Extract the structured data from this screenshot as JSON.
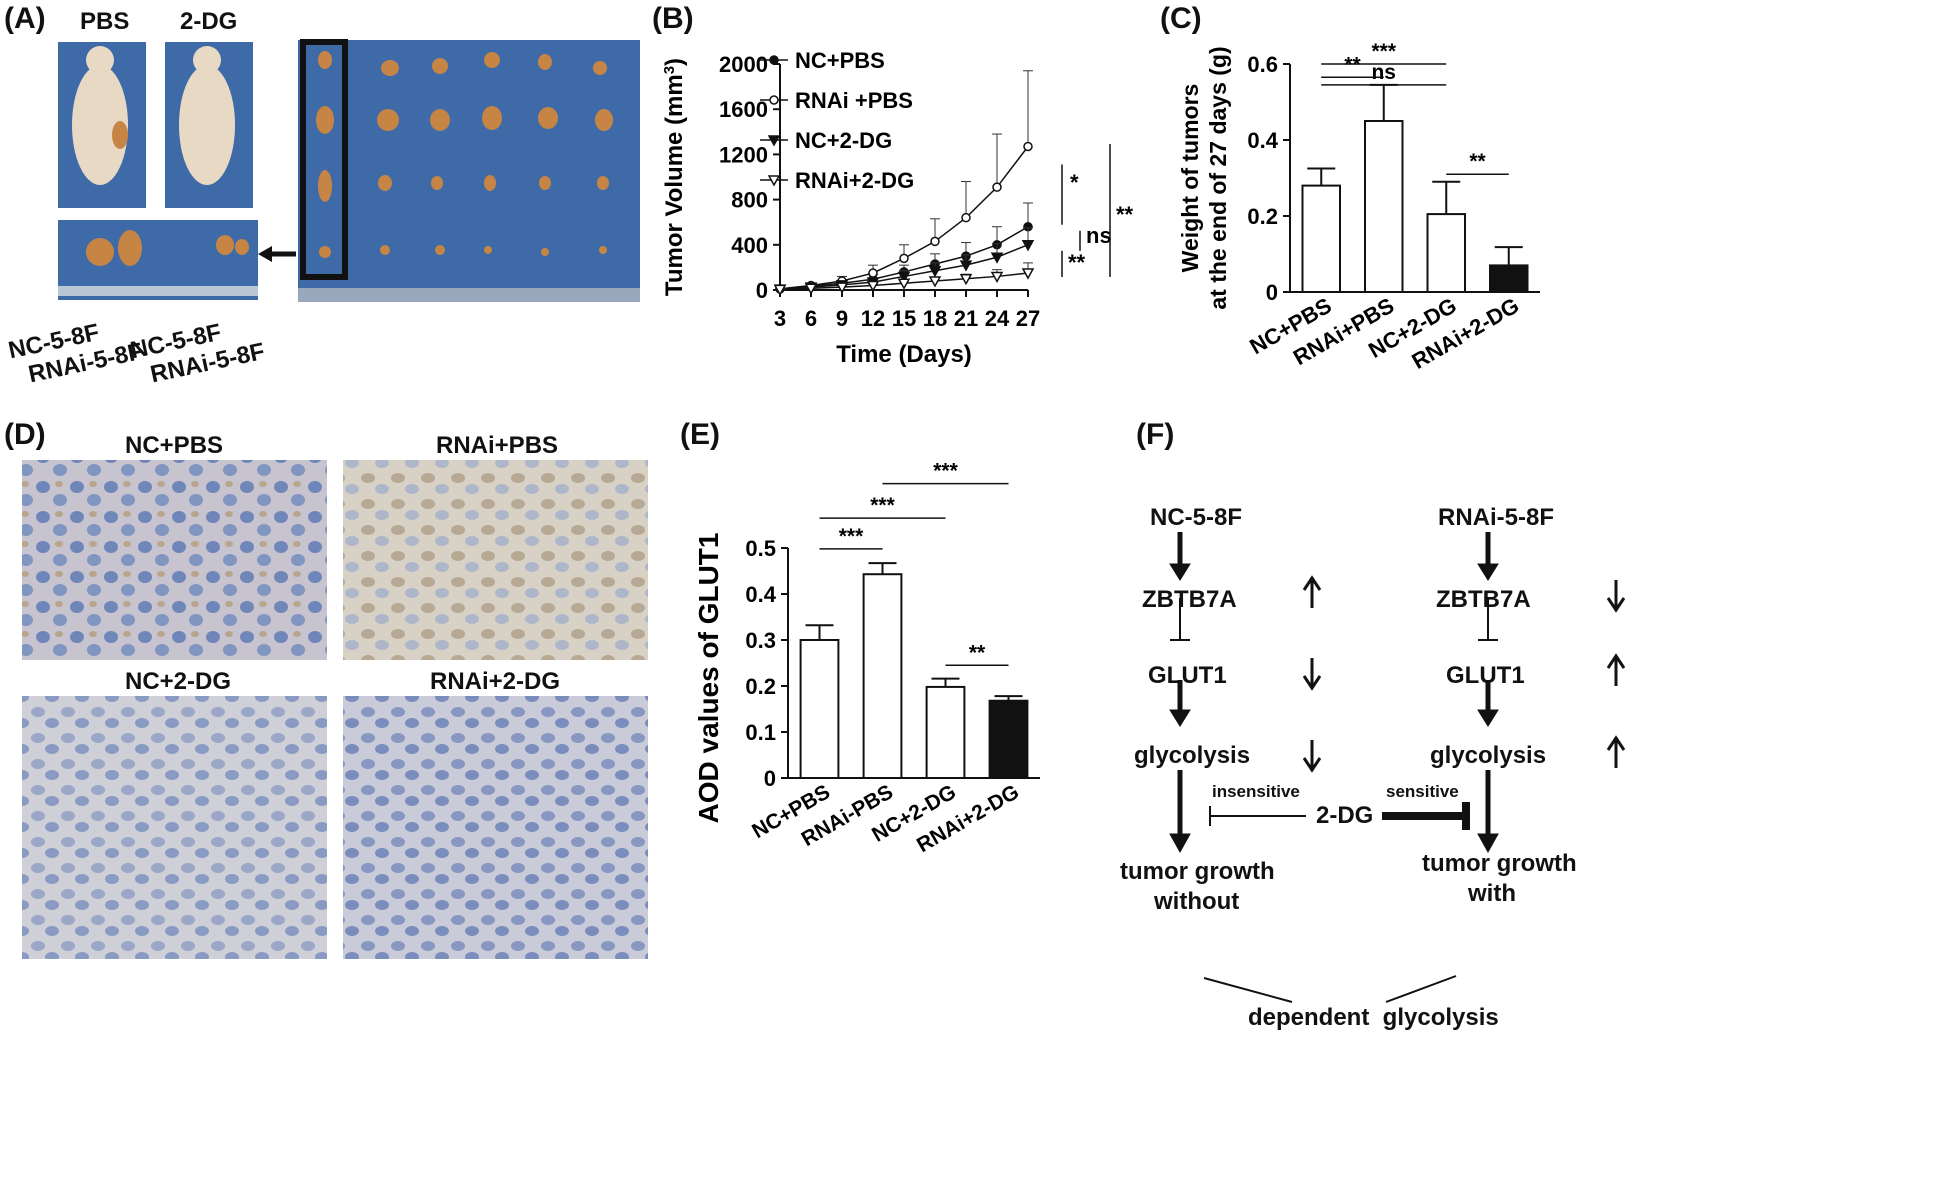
{
  "panels": {
    "A": {
      "label": "(A)",
      "mouse_labels": [
        "PBS",
        "2-DG"
      ],
      "tumor_labels": [
        "NC-5-8F",
        "RNAi-5-8F",
        "NC-5-8F",
        "RNAi-5-8F"
      ],
      "colors": {
        "board": "#3f6aa8",
        "skin": "#e8d9c4",
        "tumor": "#c78545",
        "frame": "#111111"
      }
    },
    "B": {
      "label": "(B)"
    },
    "C": {
      "label": "(C)"
    },
    "D": {
      "label": "(D)",
      "image_titles": [
        "NC+PBS",
        "RNAi+PBS",
        "NC+2-DG",
        "RNAi+2-DG"
      ],
      "colors": {
        "tissue_light": "#c9c6d0",
        "tissue_blue": "#7d8fb6",
        "brown": "#b88250"
      }
    },
    "E": {
      "label": "(E)"
    },
    "F": {
      "label": "(F)",
      "left": {
        "cell": "NC-5-8F",
        "gene1": "ZBTB7A",
        "gene2": "GLUT1",
        "process": "glycolysis",
        "outcome_l1": "tumor growth",
        "outcome_l2": "without",
        "drug_effect": "insensitive"
      },
      "right": {
        "cell": "RNAi-5-8F",
        "gene1": "ZBTB7A",
        "gene2": "GLUT1",
        "process": "glycolysis",
        "outcome_l1": "tumor growth",
        "outcome_l2": "with",
        "drug_effect": "sensitive"
      },
      "drug": "2-DG",
      "bottom": "dependent  glycolysis",
      "arrows": {
        "left_gene1": "up",
        "left_gene2": "down",
        "left_process": "down",
        "right_gene1": "down",
        "right_gene2": "up",
        "right_process": "up"
      }
    }
  },
  "chart_data": [
    {
      "id": "B",
      "type": "line",
      "xlabel": "Time (Days)",
      "ylabel": "Tumor Volume (mm",
      "ylabel_sup": "3",
      "ylabel_close": ")",
      "x": [
        3,
        6,
        9,
        12,
        15,
        18,
        21,
        24,
        27
      ],
      "xlim": [
        3,
        27
      ],
      "ylim": [
        0,
        2000
      ],
      "yticks": [
        0,
        400,
        800,
        1200,
        1600,
        2000
      ],
      "legend_position": "top-left",
      "series": [
        {
          "name": "NC+PBS",
          "marker": "filled-circle",
          "values": [
            10,
            35,
            60,
            95,
            160,
            230,
            300,
            400,
            560
          ],
          "errors": [
            5,
            15,
            25,
            40,
            60,
            90,
            120,
            160,
            210
          ]
        },
        {
          "name": "RNAi +PBS",
          "marker": "open-circle",
          "values": [
            10,
            40,
            80,
            150,
            280,
            430,
            640,
            910,
            1270
          ],
          "errors": [
            5,
            20,
            40,
            70,
            120,
            200,
            320,
            470,
            670
          ]
        },
        {
          "name": "NC+2-DG",
          "marker": "filled-triangle",
          "values": [
            8,
            25,
            45,
            70,
            120,
            170,
            220,
            290,
            400
          ],
          "errors": [
            4,
            12,
            20,
            30,
            50,
            70,
            90,
            120,
            150
          ]
        },
        {
          "name": "RNAi+2-DG",
          "marker": "open-triangle",
          "values": [
            5,
            15,
            25,
            40,
            60,
            80,
            100,
            120,
            150
          ],
          "errors": [
            3,
            8,
            12,
            15,
            20,
            30,
            40,
            60,
            90
          ]
        }
      ],
      "significance": [
        {
          "label": "*",
          "between": [
            "RNAi +PBS",
            "NC+PBS"
          ]
        },
        {
          "label": "ns",
          "between": [
            "NC+PBS",
            "NC+2-DG"
          ]
        },
        {
          "label": "**",
          "between": [
            "NC+2-DG",
            "RNAi+2-DG"
          ]
        },
        {
          "label": "**",
          "between": [
            "RNAi +PBS",
            "RNAi+2-DG"
          ]
        }
      ]
    },
    {
      "id": "C",
      "type": "bar",
      "categories": [
        "NC+PBS",
        "RNAi+PBS",
        "NC+2-DG",
        "RNAi+2-DG"
      ],
      "values": [
        0.28,
        0.45,
        0.205,
        0.07
      ],
      "errors": [
        0.045,
        0.095,
        0.085,
        0.048
      ],
      "fills": [
        "#ffffff",
        "#ffffff",
        "#ffffff",
        "#111111"
      ],
      "ylabel_lines": [
        "Weight of tumors",
        "at the end of 27 days (g)"
      ],
      "ylim": [
        0,
        0.6
      ],
      "yticks": [
        0,
        0.2,
        0.4,
        0.6
      ],
      "brackets": [
        {
          "from": 0,
          "to": 2,
          "label": "***",
          "y": 0.6
        },
        {
          "from": 0,
          "to": 2,
          "label": "ns",
          "y": 0.545
        },
        {
          "from": 0,
          "to": 1,
          "label": "**",
          "y": 0.565
        },
        {
          "from": 2,
          "to": 3,
          "label": "**",
          "y": 0.31
        }
      ]
    },
    {
      "id": "E",
      "type": "bar",
      "categories": [
        "NC+PBS",
        "RNAi-PBS",
        "NC+2-DG",
        "RNAi+2-DG"
      ],
      "values": [
        0.3,
        0.443,
        0.198,
        0.168
      ],
      "errors": [
        0.032,
        0.024,
        0.018,
        0.01
      ],
      "fills": [
        "#ffffff",
        "#ffffff",
        "#ffffff",
        "#111111"
      ],
      "ylabel": "AOD values of GLUT1",
      "ylim": [
        0,
        0.5
      ],
      "yticks": [
        0,
        0.1,
        0.2,
        0.3,
        0.4,
        0.5
      ],
      "brackets": [
        {
          "from": 1,
          "to": 3,
          "label": "***",
          "y": 0.64
        },
        {
          "from": 0,
          "to": 2,
          "label": "***",
          "y": 0.565
        },
        {
          "from": 0,
          "to": 1,
          "label": "***",
          "y": 0.498
        },
        {
          "from": 2,
          "to": 3,
          "label": "**",
          "y": 0.245
        }
      ]
    }
  ]
}
